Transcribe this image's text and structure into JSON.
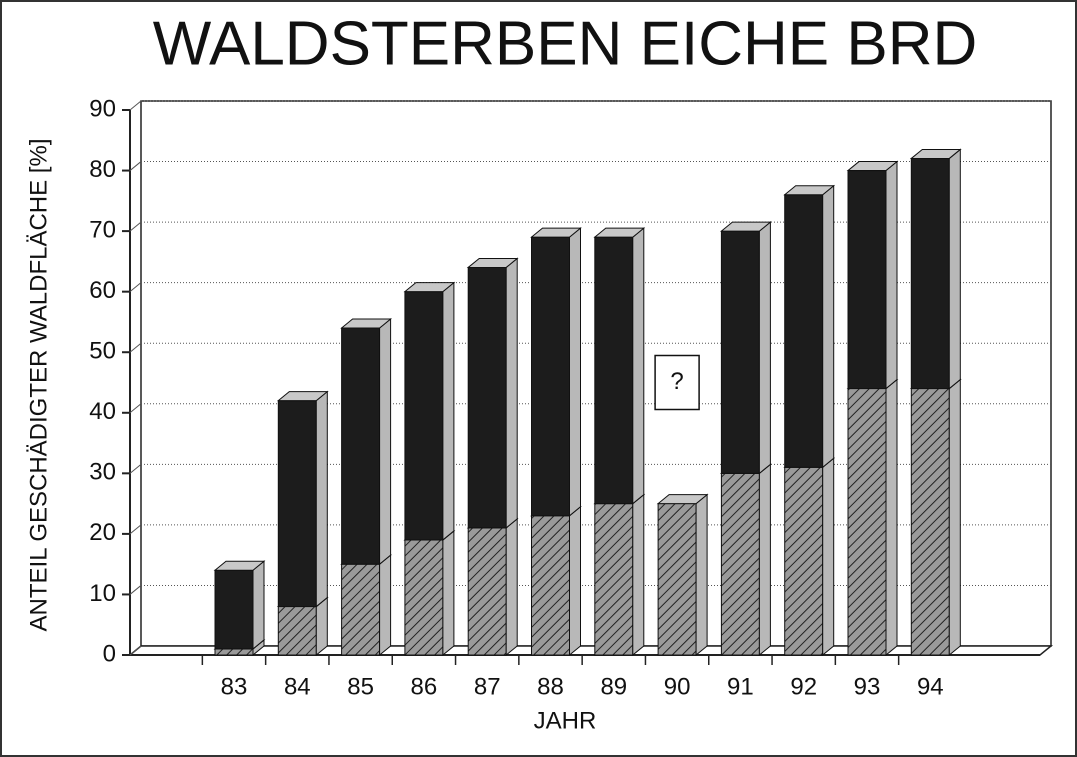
{
  "chart_data": {
    "type": "bar",
    "stacked": true,
    "title": "WALDSTERBEN EICHE BRD",
    "xlabel": "JAHR",
    "ylabel": "ANTEIL GESCHÄDIGTER WALDFLÄCHE [%]",
    "categories": [
      "83",
      "84",
      "85",
      "86",
      "87",
      "88",
      "89",
      "90",
      "91",
      "92",
      "93",
      "94"
    ],
    "series": [
      {
        "color": "#8a8a8a",
        "values": [
          1,
          8,
          15,
          19,
          21,
          23,
          25,
          25,
          30,
          31,
          44,
          44
        ]
      },
      {
        "color": "#1c1c1c",
        "values": [
          13,
          34,
          39,
          41,
          43,
          46,
          44,
          null,
          40,
          45,
          36,
          38
        ]
      }
    ],
    "annotation": "?",
    "ylim": [
      0,
      90
    ],
    "yticks": [
      0,
      10,
      20,
      30,
      40,
      50,
      60,
      70,
      80,
      90
    ],
    "grid": true
  }
}
